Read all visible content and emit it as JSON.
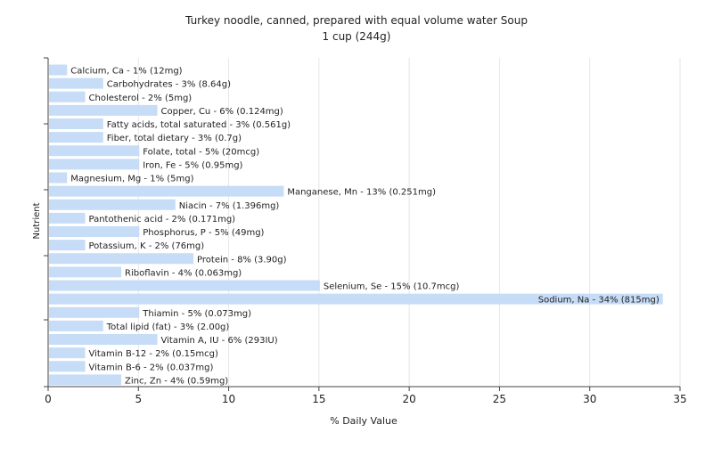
{
  "chart_data": {
    "type": "bar",
    "orientation": "horizontal",
    "title": "Turkey noodle, canned, prepared with equal volume water Soup",
    "subtitle": "1 cup (244g)",
    "xlabel": "% Daily Value",
    "ylabel": "Nutrient",
    "xlim": [
      0,
      35
    ],
    "xticks": [
      "0",
      "5",
      "10",
      "15",
      "20",
      "25",
      "30",
      "35"
    ],
    "grid": true,
    "bar_color": "#c6dcf7",
    "categories": [
      "Calcium, Ca",
      "Carbohydrates",
      "Cholesterol",
      "Copper, Cu",
      "Fatty acids, total saturated",
      "Fiber, total dietary",
      "Folate, total",
      "Iron, Fe",
      "Magnesium, Mg",
      "Manganese, Mn",
      "Niacin",
      "Pantothenic acid",
      "Phosphorus, P",
      "Potassium, K",
      "Protein",
      "Riboflavin",
      "Selenium, Se",
      "Sodium, Na",
      "Thiamin",
      "Total lipid (fat)",
      "Vitamin A, IU",
      "Vitamin B-12",
      "Vitamin B-6",
      "Zinc, Zn"
    ],
    "values": [
      1,
      3,
      2,
      6,
      3,
      3,
      5,
      5,
      1,
      13,
      7,
      2,
      5,
      2,
      8,
      4,
      15,
      34,
      5,
      3,
      6,
      2,
      2,
      4
    ],
    "labels": [
      "Calcium, Ca - 1% (12mg)",
      "Carbohydrates - 3% (8.64g)",
      "Cholesterol - 2% (5mg)",
      "Copper, Cu - 6% (0.124mg)",
      "Fatty acids, total saturated - 3% (0.561g)",
      "Fiber, total dietary - 3% (0.7g)",
      "Folate, total - 5% (20mcg)",
      "Iron, Fe - 5% (0.95mg)",
      "Magnesium, Mg - 1% (5mg)",
      "Manganese, Mn - 13% (0.251mg)",
      "Niacin - 7% (1.396mg)",
      "Pantothenic acid - 2% (0.171mg)",
      "Phosphorus, P - 5% (49mg)",
      "Potassium, K - 2% (76mg)",
      "Protein - 8% (3.90g)",
      "Riboflavin - 4% (0.063mg)",
      "Selenium, Se - 15% (10.7mcg)",
      "Sodium, Na - 34% (815mg)",
      "Thiamin - 5% (0.073mg)",
      "Total lipid (fat) - 3% (2.00g)",
      "Vitamin A, IU - 6% (293IU)",
      "Vitamin B-12 - 2% (0.15mcg)",
      "Vitamin B-6 - 2% (0.037mg)",
      "Zinc, Zn - 4% (0.59mg)"
    ]
  }
}
